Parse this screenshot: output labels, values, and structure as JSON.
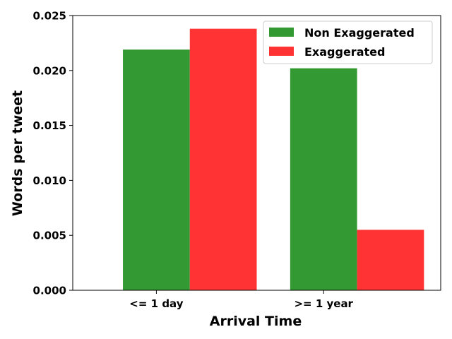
{
  "chart_data": {
    "type": "bar",
    "categories": [
      "<= 1 day",
      ">= 1 year"
    ],
    "series": [
      {
        "name": "Non Exaggerated",
        "values": [
          0.0219,
          0.0202
        ],
        "color": "#339933"
      },
      {
        "name": "Exaggerated",
        "values": [
          0.0238,
          0.0055
        ],
        "color": "#ff3333"
      }
    ],
    "xlabel": "Arrival Time",
    "ylabel": "Words per tweet",
    "ylim": [
      0,
      0.025
    ],
    "yticks": [
      "0.000",
      "0.005",
      "0.010",
      "0.015",
      "0.020",
      "0.025"
    ],
    "grid": false,
    "legend_position": "top-right"
  }
}
